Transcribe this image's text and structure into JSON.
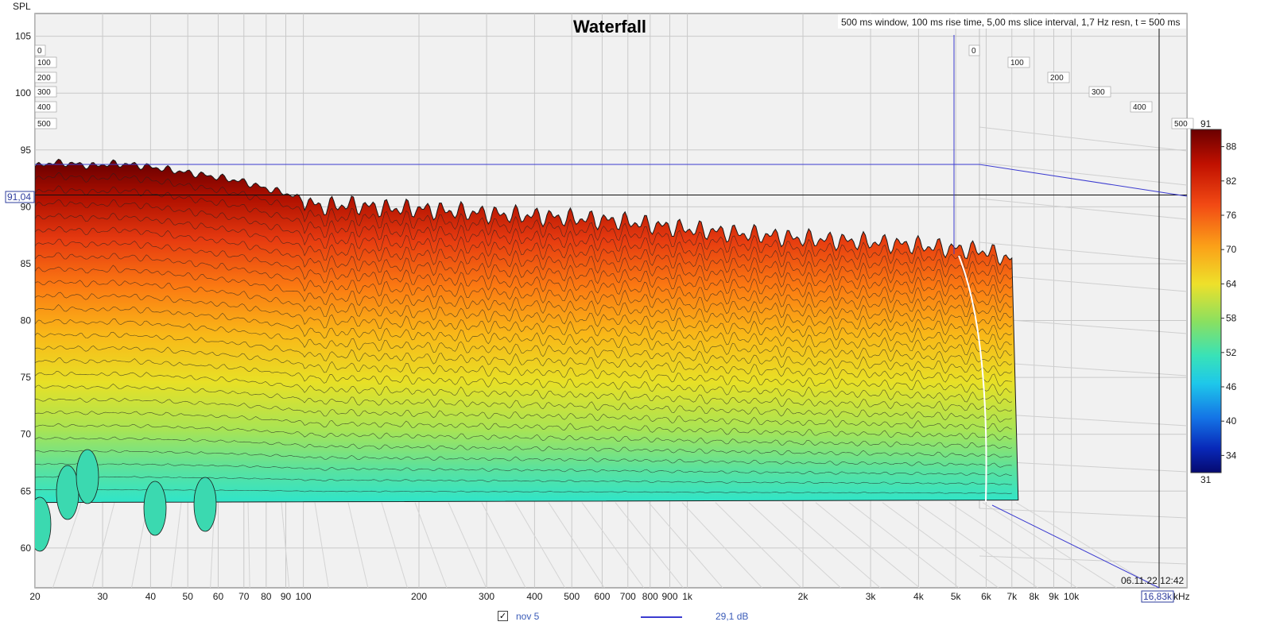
{
  "chart_data": {
    "type": "area",
    "title": "Waterfall",
    "subtitle": "500 ms window, 100 ms rise time, 5,00 ms slice interval, 1,7 Hz resn, t = 500 ms",
    "ylabel": "SPL",
    "xunit": "kHz",
    "ylim": [
      56.5,
      107
    ],
    "xlim": [
      20,
      20000
    ],
    "xscale": "log",
    "yticks": [
      60,
      65,
      70,
      75,
      80,
      85,
      90,
      95,
      100,
      105
    ],
    "xticks": [
      {
        "v": 20,
        "label": "20"
      },
      {
        "v": 30,
        "label": "30"
      },
      {
        "v": 40,
        "label": "40"
      },
      {
        "v": 50,
        "label": "50"
      },
      {
        "v": 60,
        "label": "60"
      },
      {
        "v": 70,
        "label": "70"
      },
      {
        "v": 80,
        "label": "80"
      },
      {
        "v": 90,
        "label": "90"
      },
      {
        "v": 100,
        "label": "100"
      },
      {
        "v": 200,
        "label": "200"
      },
      {
        "v": 300,
        "label": "300"
      },
      {
        "v": 400,
        "label": "400"
      },
      {
        "v": 500,
        "label": "500"
      },
      {
        "v": 600,
        "label": "600"
      },
      {
        "v": 700,
        "label": "700"
      },
      {
        "v": 800,
        "label": "800"
      },
      {
        "v": 900,
        "label": "900"
      },
      {
        "v": 1000,
        "label": "1k"
      },
      {
        "v": 2000,
        "label": "2k"
      },
      {
        "v": 3000,
        "label": "3k"
      },
      {
        "v": 4000,
        "label": "4k"
      },
      {
        "v": 5000,
        "label": "5k"
      },
      {
        "v": 6000,
        "label": "6k"
      },
      {
        "v": 7000,
        "label": "7k"
      },
      {
        "v": 8000,
        "label": "8k"
      },
      {
        "v": 9000,
        "label": "9k"
      },
      {
        "v": 10000,
        "label": "10k"
      }
    ],
    "time_axis_labels": [
      "0",
      "100",
      "200",
      "300",
      "400",
      "500"
    ],
    "time_unit": "ms",
    "colorbar": {
      "min": 31,
      "max": 91,
      "ticks": [
        34,
        40,
        46,
        52,
        58,
        64,
        70,
        76,
        82,
        88
      ]
    },
    "cursor": {
      "spl_label": "91,04",
      "spl": 91.04,
      "freq_label": "16,83k",
      "freq": 16830
    },
    "timestamp": "06.11.22 12:42",
    "front_curve": [
      [
        20,
        93.5
      ],
      [
        22,
        93.9
      ],
      [
        25,
        93.8
      ],
      [
        28,
        93.6
      ],
      [
        32,
        93.8
      ],
      [
        36,
        93.7
      ],
      [
        42,
        93.4
      ],
      [
        50,
        93.0
      ],
      [
        60,
        92.6
      ],
      [
        70,
        92.2
      ],
      [
        80,
        91.6
      ],
      [
        90,
        91.2
      ],
      [
        100,
        90.6
      ],
      [
        110,
        90.0
      ],
      [
        130,
        90.2
      ],
      [
        160,
        89.9
      ],
      [
        200,
        89.8
      ],
      [
        250,
        89.6
      ],
      [
        300,
        89.4
      ],
      [
        400,
        89.2
      ],
      [
        500,
        89.0
      ],
      [
        700,
        88.7
      ],
      [
        900,
        88.2
      ],
      [
        1200,
        87.8
      ],
      [
        1600,
        87.5
      ],
      [
        2000,
        87.2
      ],
      [
        3000,
        86.9
      ],
      [
        4000,
        86.6
      ],
      [
        5000,
        86.3
      ],
      [
        6000,
        86.1
      ],
      [
        7000,
        85.3
      ]
    ],
    "floor_spl": 64,
    "series": [
      {
        "name": "nov 5",
        "value_label": "29,1 dB",
        "color": "#3b3bd0"
      }
    ]
  },
  "legend": {
    "checked": "✓",
    "name": "nov 5",
    "value": "29,1 dB"
  }
}
